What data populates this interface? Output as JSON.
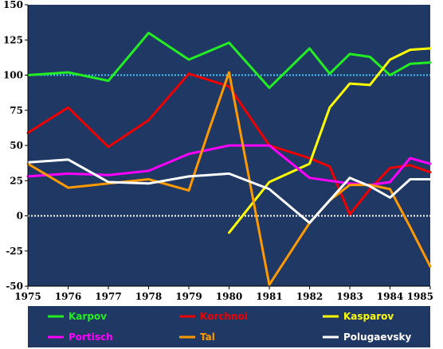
{
  "chart_data": {
    "type": "line",
    "x": [
      1975,
      1976,
      1977,
      1978,
      1979,
      1980,
      1981,
      1982,
      1983,
      1984,
      1985
    ],
    "xlim": [
      1975,
      1985
    ],
    "ylim": [
      -50,
      150
    ],
    "x_ticks": [
      "1975",
      "1976",
      "1977",
      "1978",
      "1979",
      "1980",
      "1981",
      "1982",
      "1983",
      "1984",
      "1985"
    ],
    "y_ticks": [
      "150",
      "125",
      "100",
      "75",
      "50",
      "25",
      "0",
      "-25",
      "-50"
    ],
    "plot_background": "#1F3864",
    "reference_lines": [
      {
        "y": 100,
        "color": "#33CCFF",
        "style": "dotted"
      },
      {
        "y": 0,
        "color": "#FFFFFF",
        "style": "dotted"
      }
    ],
    "legend_position": "bottom",
    "series": [
      {
        "name": "Karpov",
        "color": "#22EE22",
        "points": [
          [
            1975,
            100
          ],
          [
            1976,
            102
          ],
          [
            1977,
            96
          ],
          [
            1978,
            130
          ],
          [
            1979,
            111
          ],
          [
            1980,
            123
          ],
          [
            1981,
            91
          ],
          [
            1982,
            119
          ],
          [
            1982.5,
            101
          ],
          [
            1983,
            115
          ],
          [
            1983.5,
            113
          ],
          [
            1984,
            100
          ],
          [
            1984.5,
            108
          ],
          [
            1985,
            109
          ]
        ]
      },
      {
        "name": "Korchnoi",
        "color": "#EE0000",
        "points": [
          [
            1975,
            59
          ],
          [
            1976,
            77
          ],
          [
            1977,
            49
          ],
          [
            1978,
            68
          ],
          [
            1979,
            101
          ],
          [
            1980,
            92
          ],
          [
            1981,
            50
          ],
          [
            1982,
            41
          ],
          [
            1982.5,
            35
          ],
          [
            1983,
            1
          ],
          [
            1983.5,
            19
          ],
          [
            1984,
            34
          ],
          [
            1984.5,
            36
          ],
          [
            1985,
            31
          ]
        ]
      },
      {
        "name": "Kasparov",
        "color": "#FFFF00",
        "points": [
          [
            1980,
            -12
          ],
          [
            1981,
            24
          ],
          [
            1982,
            37
          ],
          [
            1982.5,
            77
          ],
          [
            1983,
            94
          ],
          [
            1983.5,
            93
          ],
          [
            1984,
            111
          ],
          [
            1984.5,
            118
          ],
          [
            1985,
            119
          ]
        ]
      },
      {
        "name": "Portisch",
        "color": "#FF00FF",
        "points": [
          [
            1975,
            28
          ],
          [
            1976,
            30
          ],
          [
            1977,
            29
          ],
          [
            1978,
            32
          ],
          [
            1979,
            44
          ],
          [
            1980,
            50
          ],
          [
            1981,
            50
          ],
          [
            1982,
            27
          ],
          [
            1982.5,
            25
          ],
          [
            1983,
            23
          ],
          [
            1983.5,
            22
          ],
          [
            1984,
            24
          ],
          [
            1984.5,
            41
          ],
          [
            1985,
            37
          ]
        ]
      },
      {
        "name": "Tal",
        "color": "#FF9900",
        "points": [
          [
            1975,
            37
          ],
          [
            1976,
            20
          ],
          [
            1977,
            23
          ],
          [
            1978,
            26
          ],
          [
            1979,
            18
          ],
          [
            1979.5,
            61
          ],
          [
            1980,
            102
          ],
          [
            1981,
            -49
          ],
          [
            1982,
            -5
          ],
          [
            1982.5,
            11
          ],
          [
            1983,
            22
          ],
          [
            1983.5,
            22
          ],
          [
            1984,
            19
          ],
          [
            1984.5,
            -8
          ],
          [
            1985,
            -36
          ]
        ]
      },
      {
        "name": "Polugaevsky",
        "color": "#FFFFFF",
        "points": [
          [
            1975,
            38
          ],
          [
            1976,
            40
          ],
          [
            1977,
            24
          ],
          [
            1978,
            23
          ],
          [
            1979,
            28
          ],
          [
            1980,
            30
          ],
          [
            1981,
            19
          ],
          [
            1982,
            -5
          ],
          [
            1983,
            27
          ],
          [
            1983.5,
            21
          ],
          [
            1984,
            13
          ],
          [
            1984.5,
            26
          ],
          [
            1985,
            26
          ]
        ]
      }
    ]
  }
}
